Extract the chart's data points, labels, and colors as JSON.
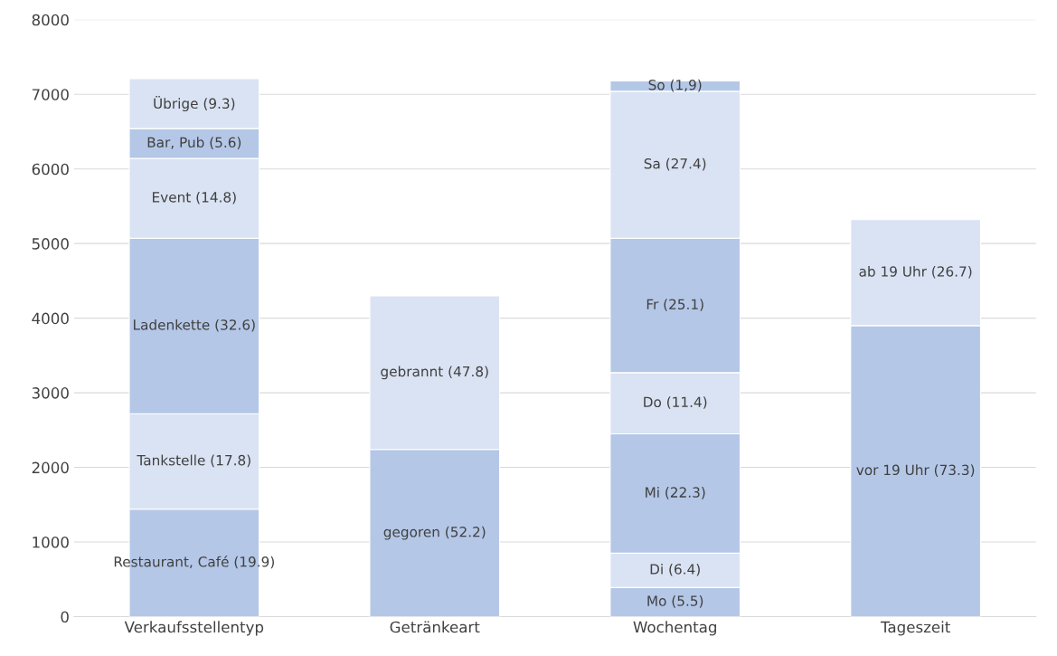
{
  "chart_data": {
    "type": "bar",
    "stacked": true,
    "categories": [
      "Verkaufsstellentyp",
      "Getränkeart",
      "Wochentag",
      "Tageszeit"
    ],
    "series": [
      {
        "color": "#b4c7e7",
        "values": [
          1440,
          2240,
          390,
          3900
        ]
      },
      {
        "color": "#dae3f3",
        "values": [
          1280,
          2060,
          460,
          1420
        ]
      },
      {
        "color": "#b4c7e7",
        "values": [
          2350,
          null,
          1600,
          null
        ]
      },
      {
        "color": "#dae3f3",
        "values": [
          1070,
          null,
          820,
          null
        ]
      },
      {
        "color": "#b4c7e7",
        "values": [
          400,
          null,
          1800,
          null
        ]
      },
      {
        "color": "#dae3f3",
        "values": [
          670,
          null,
          1970,
          null
        ]
      },
      {
        "color": "#b4c7e7",
        "values": [
          null,
          null,
          140,
          null
        ]
      }
    ],
    "annotations": [
      "Restaurant, Café (19.9)",
      "Tankstelle (17.8)",
      "Ladenkette (32.6)",
      "Event (14.8)",
      "Bar, Pub (5.6)",
      "Übrige (9.3)",
      "gegoren (52.2)",
      "gebrannt (47.8)",
      "Mo (5.5)",
      "Di (6.4)",
      "Mi (22.3)",
      "Do (11.4)",
      "Fr (25.1)",
      "Sa (27.4)",
      "So (1,9)",
      "vor 19 Uhr (73.3)",
      "ab 19 Uhr (26.7)"
    ],
    "ylim": [
      0,
      8000
    ],
    "yticks": [
      0,
      1000,
      2000,
      3000,
      4000,
      5000,
      6000,
      7000,
      8000
    ],
    "grid": "y",
    "legend": false
  }
}
